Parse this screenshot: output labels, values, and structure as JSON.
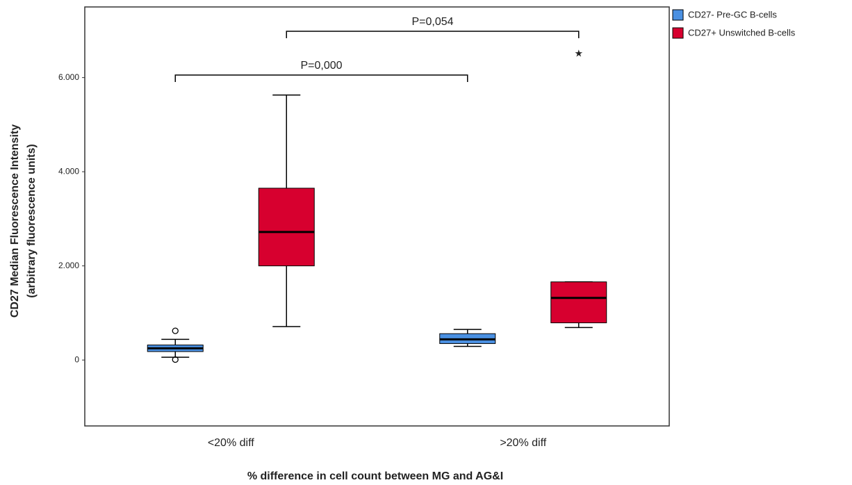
{
  "chart_data": {
    "type": "box",
    "x_label": "% difference in cell count between MG and AG&I",
    "y_label": [
      "CD27 Median Fluorescence Intensity",
      "(arbitrary fluorescence units)"
    ],
    "categories": [
      "<20% diff",
      ">20% diff"
    ],
    "series": [
      {
        "name": "CD27- Pre-GC B-cells",
        "color": "#4a90e2",
        "boxes": [
          {
            "min": 60,
            "q1": 180,
            "median": 250,
            "q3": 320,
            "max": 440,
            "outliers": [
              620,
              10
            ],
            "extremes": []
          },
          {
            "min": 290,
            "q1": 350,
            "median": 440,
            "q3": 560,
            "max": 650,
            "outliers": [],
            "extremes": []
          }
        ]
      },
      {
        "name": "CD27+ Unswitched B-cells",
        "color": "#d7002f",
        "boxes": [
          {
            "min": 710,
            "q1": 2000,
            "median": 2720,
            "q3": 3650,
            "max": 5630,
            "outliers": [],
            "extremes": []
          },
          {
            "min": 690,
            "q1": 790,
            "median": 1320,
            "q3": 1660,
            "max": 1660,
            "outliers": [],
            "extremes": [
              6530
            ]
          }
        ]
      }
    ],
    "annotations": [
      "P=0,000",
      "P=0,054"
    ],
    "ylim": [
      -1400,
      7500
    ],
    "yticks": [
      0,
      {
        "value": 2000,
        "label": "2.000"
      },
      {
        "value": 4000,
        "label": "4.000"
      },
      {
        "value": 6000,
        "label": "6.000"
      }
    ],
    "legend": "right"
  }
}
